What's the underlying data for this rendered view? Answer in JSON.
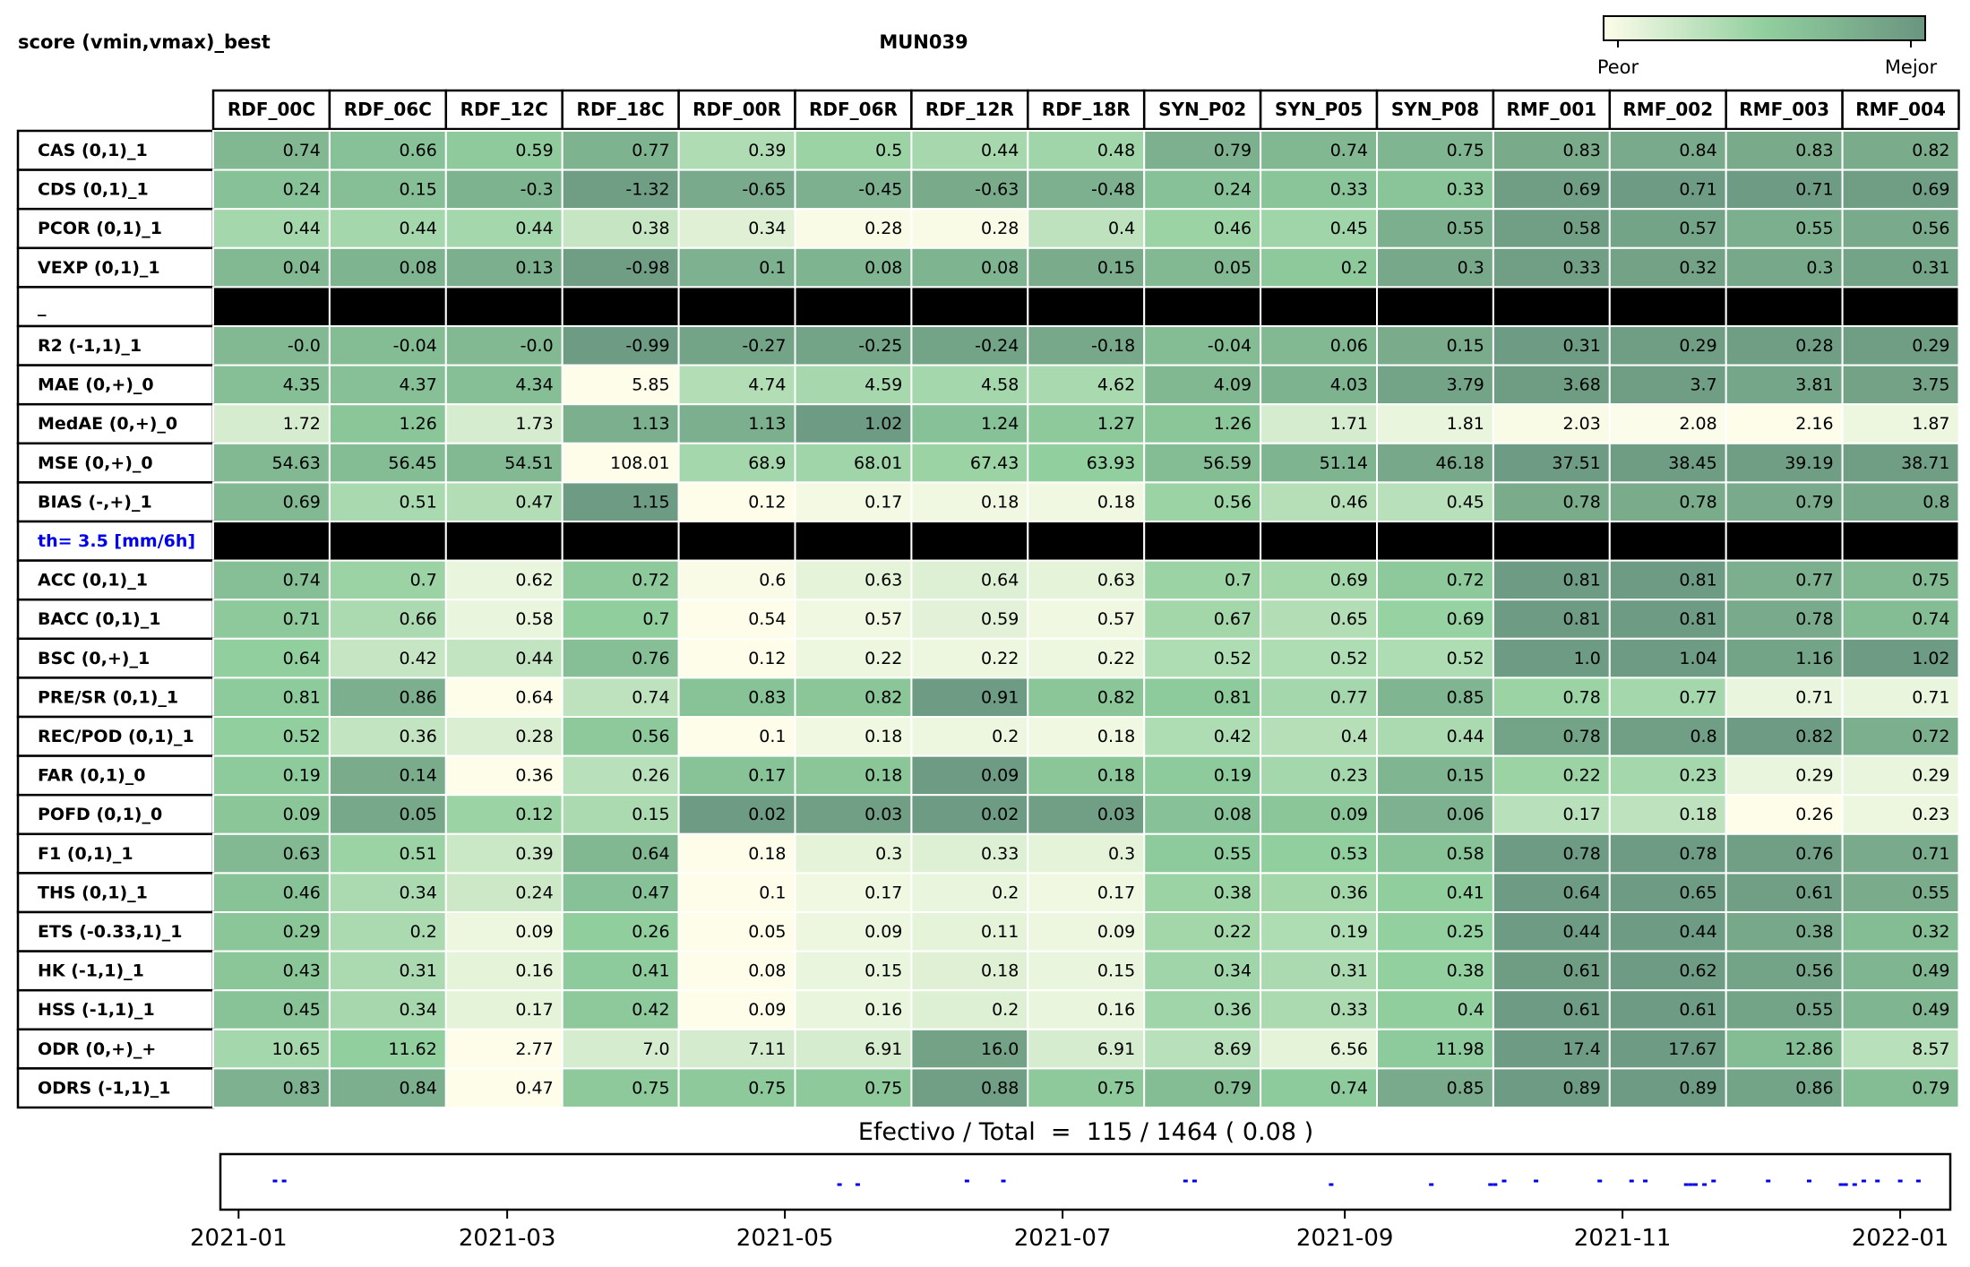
{
  "header": {
    "left_label": "score (vmin,vmax)_best",
    "title": "MUN039",
    "legend_low": "Peor",
    "legend_high": "Mejor"
  },
  "colors": {
    "scale_low": "#fdfdea",
    "scale_mid": "#91cf9e",
    "scale_high": "#6a9580",
    "separator": "#000000",
    "threshold_label": "#0000ee",
    "timeline_marks": "#0000ee"
  },
  "chart_data": {
    "type": "heatmap",
    "title": "MUN039",
    "columns": [
      "RDF_00C",
      "RDF_06C",
      "RDF_12C",
      "RDF_18C",
      "RDF_00R",
      "RDF_06R",
      "RDF_12R",
      "RDF_18R",
      "SYN_P02",
      "SYN_P05",
      "SYN_P08",
      "RMF_001",
      "RMF_002",
      "RMF_003",
      "RMF_004"
    ],
    "rows": [
      {
        "label": "CAS (0,1)_1",
        "values": [
          "0.74",
          "0.66",
          "0.59",
          "0.77",
          "0.39",
          "0.5",
          "0.44",
          "0.48",
          "0.79",
          "0.74",
          "0.75",
          "0.83",
          "0.84",
          "0.83",
          "0.82"
        ],
        "level": [
          0.74,
          0.66,
          0.59,
          0.77,
          0.39,
          0.5,
          0.44,
          0.48,
          0.79,
          0.74,
          0.75,
          0.83,
          0.84,
          0.83,
          0.82
        ]
      },
      {
        "label": "CDS (0,1)_1",
        "values": [
          "0.24",
          "0.15",
          "-0.3",
          "-1.32",
          "-0.65",
          "-0.45",
          "-0.63",
          "-0.48",
          "0.24",
          "0.33",
          "0.33",
          "0.69",
          "0.71",
          "0.71",
          "0.69"
        ],
        "level": [
          0.66,
          0.68,
          0.77,
          0.93,
          0.84,
          0.79,
          0.83,
          0.79,
          0.66,
          0.63,
          0.63,
          0.93,
          0.95,
          0.95,
          0.93
        ]
      },
      {
        "label": "PCOR (0,1)_1",
        "values": [
          "0.44",
          "0.44",
          "0.44",
          "0.38",
          "0.34",
          "0.28",
          "0.28",
          "0.4",
          "0.46",
          "0.45",
          "0.55",
          "0.58",
          "0.57",
          "0.55",
          "0.56"
        ],
        "level": [
          0.45,
          0.45,
          0.45,
          0.28,
          0.15,
          0.02,
          0.02,
          0.32,
          0.5,
          0.48,
          0.8,
          0.92,
          0.88,
          0.8,
          0.84
        ]
      },
      {
        "label": "VEXP (0,1)_1",
        "values": [
          "0.04",
          "0.08",
          "0.13",
          "-0.98",
          "0.1",
          "0.08",
          "0.08",
          "0.15",
          "0.05",
          "0.2",
          "0.3",
          "0.33",
          "0.32",
          "0.3",
          "0.31"
        ],
        "level": [
          0.72,
          0.76,
          0.8,
          0.93,
          0.78,
          0.76,
          0.76,
          0.82,
          0.72,
          0.6,
          0.85,
          0.92,
          0.9,
          0.85,
          0.88
        ]
      },
      {
        "label": "_",
        "separator": true
      },
      {
        "label": "R2 (-1,1)_1",
        "values": [
          "-0.0",
          "-0.04",
          "-0.0",
          "-0.99",
          "-0.27",
          "-0.25",
          "-0.24",
          "-0.18",
          "-0.04",
          "0.06",
          "0.15",
          "0.31",
          "0.29",
          "0.28",
          "0.29"
        ],
        "level": [
          0.72,
          0.7,
          0.72,
          0.95,
          0.88,
          0.88,
          0.88,
          0.85,
          0.7,
          0.72,
          0.82,
          0.95,
          0.93,
          0.93,
          0.93
        ]
      },
      {
        "label": "MAE (0,+)_0",
        "values": [
          "4.35",
          "4.37",
          "4.34",
          "5.85",
          "4.74",
          "4.59",
          "4.58",
          "4.62",
          "4.09",
          "4.03",
          "3.79",
          "3.68",
          "3.7",
          "3.81",
          "3.75"
        ],
        "level": [
          0.68,
          0.67,
          0.68,
          0.0,
          0.38,
          0.44,
          0.45,
          0.43,
          0.74,
          0.77,
          0.88,
          0.94,
          0.93,
          0.87,
          0.9
        ]
      },
      {
        "label": "MedAE (0,+)_0",
        "values": [
          "1.72",
          "1.26",
          "1.73",
          "1.13",
          "1.13",
          "1.02",
          "1.24",
          "1.27",
          "1.26",
          "1.71",
          "1.81",
          "2.03",
          "2.08",
          "2.16",
          "1.87"
        ],
        "level": [
          0.2,
          0.62,
          0.2,
          0.8,
          0.8,
          0.95,
          0.66,
          0.6,
          0.62,
          0.2,
          0.1,
          0.02,
          0.01,
          0.0,
          0.08
        ]
      },
      {
        "label": "MSE (0,+)_0",
        "values": [
          "54.63",
          "56.45",
          "54.51",
          "108.01",
          "68.9",
          "68.01",
          "67.43",
          "63.93",
          "56.59",
          "51.14",
          "46.18",
          "37.51",
          "38.45",
          "39.19",
          "38.71"
        ],
        "level": [
          0.72,
          0.7,
          0.72,
          0.0,
          0.45,
          0.48,
          0.5,
          0.55,
          0.7,
          0.76,
          0.85,
          0.95,
          0.94,
          0.93,
          0.93
        ]
      },
      {
        "label": "BIAS (-,+)_1",
        "values": [
          "0.69",
          "0.51",
          "0.47",
          "1.15",
          "0.12",
          "0.17",
          "0.18",
          "0.18",
          "0.56",
          "0.46",
          "0.45",
          "0.78",
          "0.78",
          "0.79",
          "0.8"
        ],
        "level": [
          0.72,
          0.43,
          0.38,
          0.95,
          0.0,
          0.05,
          0.06,
          0.06,
          0.5,
          0.36,
          0.35,
          0.82,
          0.82,
          0.84,
          0.85
        ]
      },
      {
        "label": "th= 3.5 [mm/6h]",
        "separator": true,
        "threshold": true
      },
      {
        "label": "ACC (0,1)_1",
        "values": [
          "0.74",
          "0.7",
          "0.62",
          "0.72",
          "0.6",
          "0.63",
          "0.64",
          "0.63",
          "0.7",
          "0.69",
          "0.72",
          "0.81",
          "0.81",
          "0.77",
          "0.75"
        ],
        "level": [
          0.68,
          0.5,
          0.1,
          0.6,
          0.02,
          0.12,
          0.16,
          0.12,
          0.5,
          0.46,
          0.6,
          0.95,
          0.95,
          0.8,
          0.72
        ]
      },
      {
        "label": "BACC (0,1)_1",
        "values": [
          "0.71",
          "0.66",
          "0.58",
          "0.7",
          "0.54",
          "0.57",
          "0.59",
          "0.57",
          "0.67",
          "0.65",
          "0.69",
          "0.81",
          "0.81",
          "0.78",
          "0.74"
        ],
        "level": [
          0.6,
          0.42,
          0.1,
          0.56,
          0.0,
          0.06,
          0.14,
          0.06,
          0.46,
          0.38,
          0.52,
          0.95,
          0.95,
          0.84,
          0.7
        ]
      },
      {
        "label": "BSC (0,+)_1",
        "values": [
          "0.64",
          "0.42",
          "0.44",
          "0.76",
          "0.12",
          "0.22",
          "0.22",
          "0.22",
          "0.52",
          "0.52",
          "0.52",
          "1.0",
          "1.04",
          "1.16",
          "1.02"
        ],
        "level": [
          0.55,
          0.28,
          0.3,
          0.68,
          0.0,
          0.08,
          0.08,
          0.08,
          0.4,
          0.4,
          0.4,
          0.95,
          0.95,
          0.88,
          0.95
        ]
      },
      {
        "label": "PRE/SR (0,1)_1",
        "values": [
          "0.81",
          "0.86",
          "0.64",
          "0.74",
          "0.83",
          "0.82",
          "0.91",
          "0.82",
          "0.81",
          "0.77",
          "0.85",
          "0.78",
          "0.77",
          "0.71",
          "0.71"
        ],
        "level": [
          0.58,
          0.8,
          0.0,
          0.32,
          0.65,
          0.62,
          0.95,
          0.62,
          0.58,
          0.45,
          0.75,
          0.5,
          0.45,
          0.1,
          0.1
        ]
      },
      {
        "label": "REC/POD (0,1)_1",
        "values": [
          "0.52",
          "0.36",
          "0.28",
          "0.56",
          "0.1",
          "0.18",
          "0.2",
          "0.18",
          "0.42",
          "0.4",
          "0.44",
          "0.78",
          "0.8",
          "0.82",
          "0.72"
        ],
        "level": [
          0.55,
          0.3,
          0.18,
          0.6,
          0.0,
          0.06,
          0.08,
          0.06,
          0.4,
          0.36,
          0.42,
          0.88,
          0.92,
          0.95,
          0.8
        ]
      },
      {
        "label": "FAR (0,1)_0",
        "values": [
          "0.19",
          "0.14",
          "0.36",
          "0.26",
          "0.17",
          "0.18",
          "0.09",
          "0.18",
          "0.19",
          "0.23",
          "0.15",
          "0.22",
          "0.23",
          "0.29",
          "0.29"
        ],
        "level": [
          0.58,
          0.82,
          0.0,
          0.35,
          0.65,
          0.62,
          0.95,
          0.62,
          0.58,
          0.45,
          0.75,
          0.5,
          0.45,
          0.1,
          0.1
        ]
      },
      {
        "label": "POFD (0,1)_0",
        "values": [
          "0.09",
          "0.05",
          "0.12",
          "0.15",
          "0.02",
          "0.03",
          "0.02",
          "0.03",
          "0.08",
          "0.09",
          "0.06",
          "0.17",
          "0.18",
          "0.26",
          "0.23"
        ],
        "level": [
          0.62,
          0.85,
          0.5,
          0.42,
          0.95,
          0.92,
          0.95,
          0.92,
          0.66,
          0.62,
          0.78,
          0.35,
          0.32,
          0.0,
          0.08
        ]
      },
      {
        "label": "F1 (0,1)_1",
        "values": [
          "0.63",
          "0.51",
          "0.39",
          "0.64",
          "0.18",
          "0.3",
          "0.33",
          "0.3",
          "0.55",
          "0.53",
          "0.58",
          "0.78",
          "0.78",
          "0.76",
          "0.71"
        ],
        "level": [
          0.72,
          0.5,
          0.26,
          0.74,
          0.0,
          0.12,
          0.16,
          0.12,
          0.58,
          0.55,
          0.65,
          0.95,
          0.95,
          0.92,
          0.84
        ]
      },
      {
        "label": "THS (0,1)_1",
        "values": [
          "0.46",
          "0.34",
          "0.24",
          "0.47",
          "0.1",
          "0.17",
          "0.2",
          "0.17",
          "0.38",
          "0.36",
          "0.41",
          "0.64",
          "0.65",
          "0.61",
          "0.55"
        ],
        "level": [
          0.65,
          0.42,
          0.25,
          0.66,
          0.0,
          0.06,
          0.1,
          0.06,
          0.5,
          0.46,
          0.56,
          0.95,
          0.95,
          0.92,
          0.82
        ]
      },
      {
        "label": "ETS (-0.33,1)_1",
        "values": [
          "0.29",
          "0.2",
          "0.09",
          "0.26",
          "0.05",
          "0.09",
          "0.11",
          "0.09",
          "0.22",
          "0.19",
          "0.25",
          "0.44",
          "0.44",
          "0.38",
          "0.32"
        ],
        "level": [
          0.62,
          0.42,
          0.08,
          0.56,
          0.0,
          0.08,
          0.12,
          0.08,
          0.46,
          0.4,
          0.54,
          0.95,
          0.95,
          0.85,
          0.7
        ]
      },
      {
        "label": "HK (-1,1)_1",
        "values": [
          "0.43",
          "0.31",
          "0.16",
          "0.41",
          "0.08",
          "0.15",
          "0.18",
          "0.15",
          "0.34",
          "0.31",
          "0.38",
          "0.61",
          "0.62",
          "0.56",
          "0.49"
        ],
        "level": [
          0.62,
          0.42,
          0.12,
          0.58,
          0.0,
          0.1,
          0.15,
          0.1,
          0.48,
          0.42,
          0.54,
          0.94,
          0.95,
          0.88,
          0.75
        ]
      },
      {
        "label": "HSS (-1,1)_1",
        "values": [
          "0.45",
          "0.34",
          "0.17",
          "0.42",
          "0.09",
          "0.16",
          "0.2",
          "0.16",
          "0.36",
          "0.33",
          "0.4",
          "0.61",
          "0.61",
          "0.55",
          "0.49"
        ],
        "level": [
          0.65,
          0.44,
          0.12,
          0.6,
          0.0,
          0.1,
          0.16,
          0.1,
          0.48,
          0.42,
          0.56,
          0.95,
          0.95,
          0.88,
          0.75
        ]
      },
      {
        "label": "ODR (0,+)_+",
        "values": [
          "10.65",
          "11.62",
          "2.77",
          "7.0",
          "7.11",
          "6.91",
          "16.0",
          "6.91",
          "8.69",
          "6.56",
          "11.98",
          "17.4",
          "17.67",
          "12.86",
          "8.57"
        ],
        "level": [
          0.45,
          0.55,
          0.0,
          0.2,
          0.21,
          0.2,
          0.9,
          0.2,
          0.35,
          0.12,
          0.58,
          0.95,
          0.95,
          0.7,
          0.35
        ]
      },
      {
        "label": "ODRS (-1,1)_1",
        "values": [
          "0.83",
          "0.84",
          "0.47",
          "0.75",
          "0.75",
          "0.75",
          "0.88",
          "0.75",
          "0.79",
          "0.74",
          "0.85",
          "0.89",
          "0.89",
          "0.86",
          "0.79"
        ],
        "level": [
          0.78,
          0.8,
          0.0,
          0.6,
          0.6,
          0.6,
          0.92,
          0.6,
          0.7,
          0.58,
          0.84,
          0.95,
          0.95,
          0.88,
          0.7
        ]
      }
    ],
    "summary": {
      "text": "Efectivo / Total  =  115 / 1464 ( 0.08 )",
      "effective": 115,
      "total": 1464,
      "ratio": 0.08
    },
    "timeline": {
      "type": "scatter",
      "x_ticks": [
        "2021-01",
        "2021-03",
        "2021-05",
        "2021-07",
        "2021-09",
        "2021-11",
        "2022-01"
      ],
      "xlim": [
        "2020-12-28",
        "2022-01-12"
      ],
      "events": [
        {
          "date": "2021-01-09",
          "level": "mid"
        },
        {
          "date": "2021-01-11",
          "level": "mid"
        },
        {
          "date": "2021-05-13",
          "level": "low"
        },
        {
          "date": "2021-05-17",
          "level": "low"
        },
        {
          "date": "2021-06-10",
          "level": "mid"
        },
        {
          "date": "2021-06-18",
          "level": "mid"
        },
        {
          "date": "2021-07-28",
          "level": "mid"
        },
        {
          "date": "2021-07-30",
          "level": "mid"
        },
        {
          "date": "2021-08-29",
          "level": "low"
        },
        {
          "date": "2021-09-20",
          "level": "low"
        },
        {
          "date": "2021-10-03",
          "level": "low"
        },
        {
          "date": "2021-10-04",
          "level": "low"
        },
        {
          "date": "2021-10-06",
          "level": "mid"
        },
        {
          "date": "2021-10-13",
          "level": "mid"
        },
        {
          "date": "2021-10-27",
          "level": "mid"
        },
        {
          "date": "2021-11-03",
          "level": "mid"
        },
        {
          "date": "2021-11-06",
          "level": "mid"
        },
        {
          "date": "2021-11-15",
          "level": "low"
        },
        {
          "date": "2021-11-16",
          "level": "low"
        },
        {
          "date": "2021-11-17",
          "level": "low"
        },
        {
          "date": "2021-11-19",
          "level": "low"
        },
        {
          "date": "2021-11-21",
          "level": "mid"
        },
        {
          "date": "2021-12-03",
          "level": "mid"
        },
        {
          "date": "2021-12-12",
          "level": "mid"
        },
        {
          "date": "2021-12-19",
          "level": "low"
        },
        {
          "date": "2021-12-20",
          "level": "low"
        },
        {
          "date": "2021-12-22",
          "level": "low"
        },
        {
          "date": "2021-12-24",
          "level": "mid"
        },
        {
          "date": "2021-12-27",
          "level": "mid"
        },
        {
          "date": "2022-01-01",
          "level": "mid"
        },
        {
          "date": "2022-01-05",
          "level": "mid"
        }
      ]
    }
  }
}
